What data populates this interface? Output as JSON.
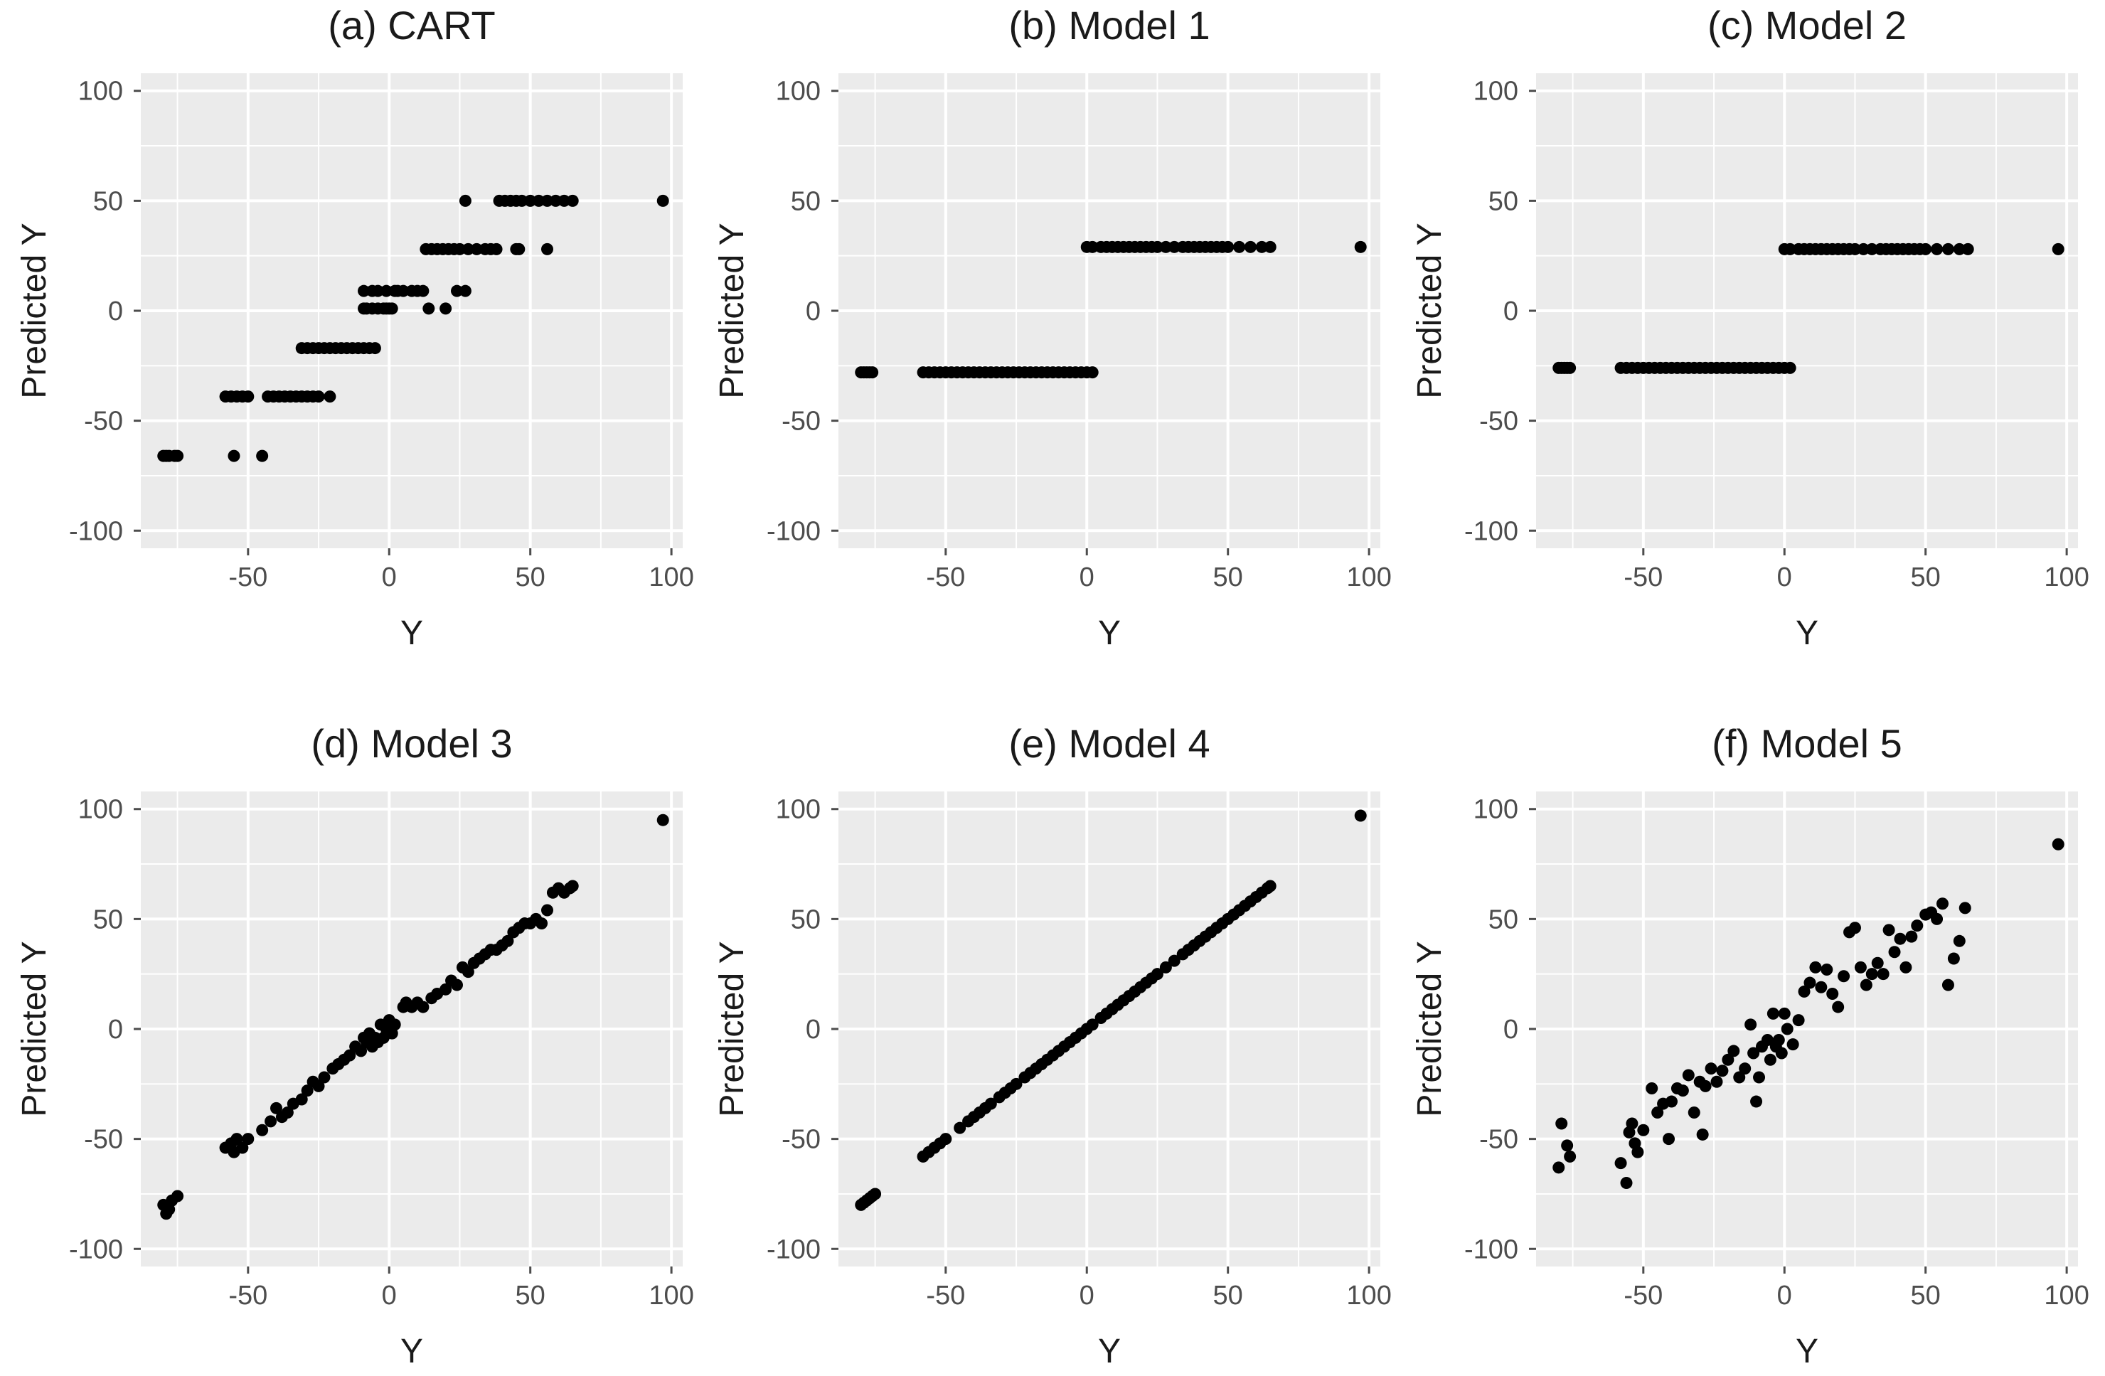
{
  "figure": {
    "background": "#ffffff",
    "panel_background": "#ebebeb",
    "grid_color": "#ffffff",
    "point_color": "#000000",
    "tick_color": "#4d4d4d"
  },
  "chart_data": [
    {
      "type": "scatter",
      "title": "(a) CART",
      "xlabel": "Y",
      "ylabel": "Predicted Y",
      "xlim": [
        -88,
        104
      ],
      "ylim": [
        -108,
        108
      ],
      "xticks": [
        -50,
        0,
        50,
        100
      ],
      "yticks": [
        -100,
        -50,
        0,
        50,
        100
      ],
      "grid": true,
      "x": [
        -80,
        -79,
        -78,
        -76,
        -75,
        -58,
        -56,
        -54,
        -52,
        -50,
        -55,
        -45,
        -43,
        -41,
        -39,
        -37,
        -35,
        -33,
        -31,
        -29,
        -27,
        -25,
        -21,
        -31,
        -29,
        -27,
        -25,
        -23,
        -21,
        -19,
        -17,
        -15,
        -13,
        -11,
        -9,
        -7,
        -5,
        -9,
        -8,
        -6,
        -4,
        -2,
        -1,
        0,
        1,
        -9,
        -6,
        -4,
        -1,
        2,
        3,
        5,
        8,
        10,
        12,
        14,
        20,
        24,
        27,
        13,
        15,
        17,
        19,
        21,
        23,
        25,
        28,
        31,
        34,
        36,
        38,
        45,
        56,
        27,
        39,
        41,
        43,
        45,
        47,
        50,
        53,
        56,
        59,
        62,
        65,
        46,
        97
      ],
      "y": [
        -66,
        -66,
        -66,
        -66,
        -66,
        -39,
        -39,
        -39,
        -39,
        -39,
        -66,
        -66,
        -39,
        -39,
        -39,
        -39,
        -39,
        -39,
        -39,
        -39,
        -39,
        -39,
        -39,
        -17,
        -17,
        -17,
        -17,
        -17,
        -17,
        -17,
        -17,
        -17,
        -17,
        -17,
        -17,
        -17,
        -17,
        1,
        1,
        1,
        1,
        1,
        1,
        1,
        1,
        9,
        9,
        9,
        9,
        9,
        9,
        9,
        9,
        9,
        9,
        1,
        1,
        9,
        9,
        28,
        28,
        28,
        28,
        28,
        28,
        28,
        28,
        28,
        28,
        28,
        28,
        28,
        28,
        50,
        50,
        50,
        50,
        50,
        50,
        50,
        50,
        50,
        50,
        50,
        50,
        28,
        50
      ]
    },
    {
      "type": "scatter",
      "title": "(b) Model 1",
      "xlabel": "Y",
      "ylabel": "Predicted Y",
      "xlim": [
        -88,
        104
      ],
      "ylim": [
        -108,
        108
      ],
      "xticks": [
        -50,
        0,
        50,
        100
      ],
      "yticks": [
        -100,
        -50,
        0,
        50,
        100
      ],
      "grid": true,
      "x": [
        -80,
        -79,
        -78,
        -77,
        -76,
        -58,
        -56,
        -54,
        -52,
        -50,
        -48,
        -46,
        -44,
        -42,
        -40,
        -38,
        -36,
        -34,
        -32,
        -30,
        -28,
        -26,
        -24,
        -22,
        -20,
        -18,
        -16,
        -14,
        -12,
        -10,
        -8,
        -6,
        -4,
        -2,
        0,
        2,
        0,
        2,
        5,
        7,
        9,
        11,
        13,
        15,
        17,
        19,
        21,
        23,
        25,
        28,
        31,
        34,
        36,
        38,
        40,
        42,
        44,
        46,
        48,
        50,
        54,
        58,
        62,
        65,
        97
      ],
      "y": [
        -28,
        -28,
        -28,
        -28,
        -28,
        -28,
        -28,
        -28,
        -28,
        -28,
        -28,
        -28,
        -28,
        -28,
        -28,
        -28,
        -28,
        -28,
        -28,
        -28,
        -28,
        -28,
        -28,
        -28,
        -28,
        -28,
        -28,
        -28,
        -28,
        -28,
        -28,
        -28,
        -28,
        -28,
        -28,
        -28,
        29,
        29,
        29,
        29,
        29,
        29,
        29,
        29,
        29,
        29,
        29,
        29,
        29,
        29,
        29,
        29,
        29,
        29,
        29,
        29,
        29,
        29,
        29,
        29,
        29,
        29,
        29,
        29,
        29
      ]
    },
    {
      "type": "scatter",
      "title": "(c) Model 2",
      "xlabel": "Y",
      "ylabel": "Predicted Y",
      "xlim": [
        -88,
        104
      ],
      "ylim": [
        -108,
        108
      ],
      "xticks": [
        -50,
        0,
        50,
        100
      ],
      "yticks": [
        -100,
        -50,
        0,
        50,
        100
      ],
      "grid": true,
      "x": [
        -80,
        -79,
        -78,
        -77,
        -76,
        -58,
        -56,
        -54,
        -52,
        -50,
        -48,
        -46,
        -44,
        -42,
        -40,
        -38,
        -36,
        -34,
        -32,
        -30,
        -28,
        -26,
        -24,
        -22,
        -20,
        -18,
        -16,
        -14,
        -12,
        -10,
        -8,
        -6,
        -4,
        -2,
        0,
        2,
        0,
        2,
        5,
        7,
        9,
        11,
        13,
        15,
        17,
        19,
        21,
        23,
        25,
        28,
        31,
        34,
        36,
        38,
        40,
        42,
        44,
        46,
        48,
        50,
        54,
        58,
        62,
        65,
        97
      ],
      "y": [
        -26,
        -26,
        -26,
        -26,
        -26,
        -26,
        -26,
        -26,
        -26,
        -26,
        -26,
        -26,
        -26,
        -26,
        -26,
        -26,
        -26,
        -26,
        -26,
        -26,
        -26,
        -26,
        -26,
        -26,
        -26,
        -26,
        -26,
        -26,
        -26,
        -26,
        -26,
        -26,
        -26,
        -26,
        -26,
        -26,
        28,
        28,
        28,
        28,
        28,
        28,
        28,
        28,
        28,
        28,
        28,
        28,
        28,
        28,
        28,
        28,
        28,
        28,
        28,
        28,
        28,
        28,
        28,
        28,
        28,
        28,
        28,
        28,
        28
      ]
    },
    {
      "type": "scatter",
      "title": "(d) Model 3",
      "xlabel": "Y",
      "ylabel": "Predicted Y",
      "xlim": [
        -88,
        104
      ],
      "ylim": [
        -108,
        108
      ],
      "xticks": [
        -50,
        0,
        50,
        100
      ],
      "yticks": [
        -100,
        -50,
        0,
        50,
        100
      ],
      "grid": true,
      "x": [
        -80,
        -79,
        -78,
        -77,
        -75,
        -58,
        -56,
        -55,
        -54,
        -52,
        -50,
        -45,
        -42,
        -40,
        -38,
        -36,
        -34,
        -31,
        -29,
        -27,
        -25,
        -23,
        -20,
        -18,
        -16,
        -14,
        -12,
        -10,
        -9,
        -8,
        -7,
        -6,
        -5,
        -4,
        -3,
        -2,
        -1,
        0,
        1,
        2,
        5,
        6,
        8,
        10,
        12,
        15,
        17,
        20,
        22,
        24,
        26,
        28,
        30,
        32,
        34,
        36,
        38,
        40,
        42,
        44,
        46,
        48,
        50,
        52,
        54,
        56,
        58,
        60,
        62,
        64,
        65,
        97
      ],
      "y": [
        -80,
        -84,
        -82,
        -78,
        -76,
        -54,
        -52,
        -56,
        -50,
        -54,
        -50,
        -46,
        -42,
        -36,
        -40,
        -38,
        -34,
        -32,
        -28,
        -24,
        -26,
        -22,
        -18,
        -16,
        -14,
        -12,
        -8,
        -10,
        -4,
        -6,
        -2,
        -8,
        -4,
        -6,
        2,
        -4,
        0,
        4,
        -2,
        2,
        10,
        12,
        10,
        12,
        10,
        14,
        16,
        18,
        22,
        20,
        28,
        26,
        30,
        32,
        34,
        36,
        36,
        38,
        40,
        44,
        46,
        48,
        48,
        50,
        48,
        54,
        62,
        64,
        62,
        64,
        65,
        95
      ]
    },
    {
      "type": "scatter",
      "title": "(e) Model 4",
      "xlabel": "Y",
      "ylabel": "Predicted Y",
      "xlim": [
        -88,
        104
      ],
      "ylim": [
        -108,
        108
      ],
      "xticks": [
        -50,
        0,
        50,
        100
      ],
      "yticks": [
        -100,
        -50,
        0,
        50,
        100
      ],
      "grid": true,
      "x": [
        -80,
        -79,
        -78,
        -77,
        -76,
        -75,
        -58,
        -56,
        -54,
        -52,
        -50,
        -45,
        -42,
        -40,
        -38,
        -36,
        -34,
        -31,
        -29,
        -27,
        -25,
        -22,
        -20,
        -18,
        -16,
        -14,
        -12,
        -10,
        -8,
        -6,
        -4,
        -2,
        0,
        2,
        5,
        7,
        9,
        11,
        13,
        15,
        17,
        19,
        21,
        23,
        25,
        28,
        31,
        34,
        36,
        38,
        40,
        42,
        44,
        46,
        48,
        50,
        52,
        54,
        56,
        58,
        60,
        62,
        64,
        65,
        97
      ],
      "y": [
        -80,
        -79,
        -78,
        -77,
        -76,
        -75,
        -58,
        -56,
        -54,
        -52,
        -50,
        -45,
        -42,
        -40,
        -38,
        -36,
        -34,
        -31,
        -29,
        -27,
        -25,
        -22,
        -20,
        -18,
        -16,
        -14,
        -12,
        -10,
        -8,
        -6,
        -4,
        -2,
        0,
        2,
        5,
        7,
        9,
        11,
        13,
        15,
        17,
        19,
        21,
        23,
        25,
        28,
        31,
        34,
        36,
        38,
        40,
        42,
        44,
        46,
        48,
        50,
        52,
        54,
        56,
        58,
        60,
        62,
        64,
        65,
        97
      ]
    },
    {
      "type": "scatter",
      "title": "(f) Model 5",
      "xlabel": "Y",
      "ylabel": "Predicted Y",
      "xlim": [
        -88,
        104
      ],
      "ylim": [
        -108,
        108
      ],
      "xticks": [
        -50,
        0,
        50,
        100
      ],
      "yticks": [
        -100,
        -50,
        0,
        50,
        100
      ],
      "grid": true,
      "x": [
        -80,
        -79,
        -77,
        -76,
        -58,
        -56,
        -55,
        -54,
        -53,
        -52,
        -50,
        -47,
        -45,
        -43,
        -41,
        -40,
        -38,
        -36,
        -34,
        -32,
        -30,
        -29,
        -28,
        -26,
        -24,
        -22,
        -20,
        -18,
        -16,
        -14,
        -12,
        -11,
        -10,
        -9,
        -8,
        -6,
        -5,
        -4,
        -3,
        -2,
        -1,
        0,
        1,
        3,
        5,
        7,
        9,
        11,
        13,
        15,
        17,
        19,
        21,
        23,
        25,
        27,
        29,
        31,
        33,
        35,
        37,
        39,
        41,
        43,
        45,
        47,
        50,
        52,
        54,
        56,
        58,
        60,
        62,
        64,
        97
      ],
      "y": [
        -63,
        -43,
        -53,
        -58,
        -61,
        -70,
        -47,
        -43,
        -52,
        -56,
        -46,
        -27,
        -38,
        -34,
        -50,
        -33,
        -27,
        -28,
        -21,
        -38,
        -24,
        -48,
        -26,
        -18,
        -24,
        -19,
        -14,
        -10,
        -22,
        -18,
        2,
        -11,
        -33,
        -22,
        -8,
        -5,
        -14,
        7,
        -8,
        -5,
        -11,
        7,
        0,
        -7,
        4,
        17,
        21,
        28,
        19,
        27,
        16,
        10,
        24,
        44,
        46,
        28,
        20,
        25,
        30,
        25,
        45,
        35,
        41,
        28,
        42,
        47,
        52,
        53,
        50,
        57,
        20,
        32,
        40,
        55,
        84
      ]
    }
  ]
}
